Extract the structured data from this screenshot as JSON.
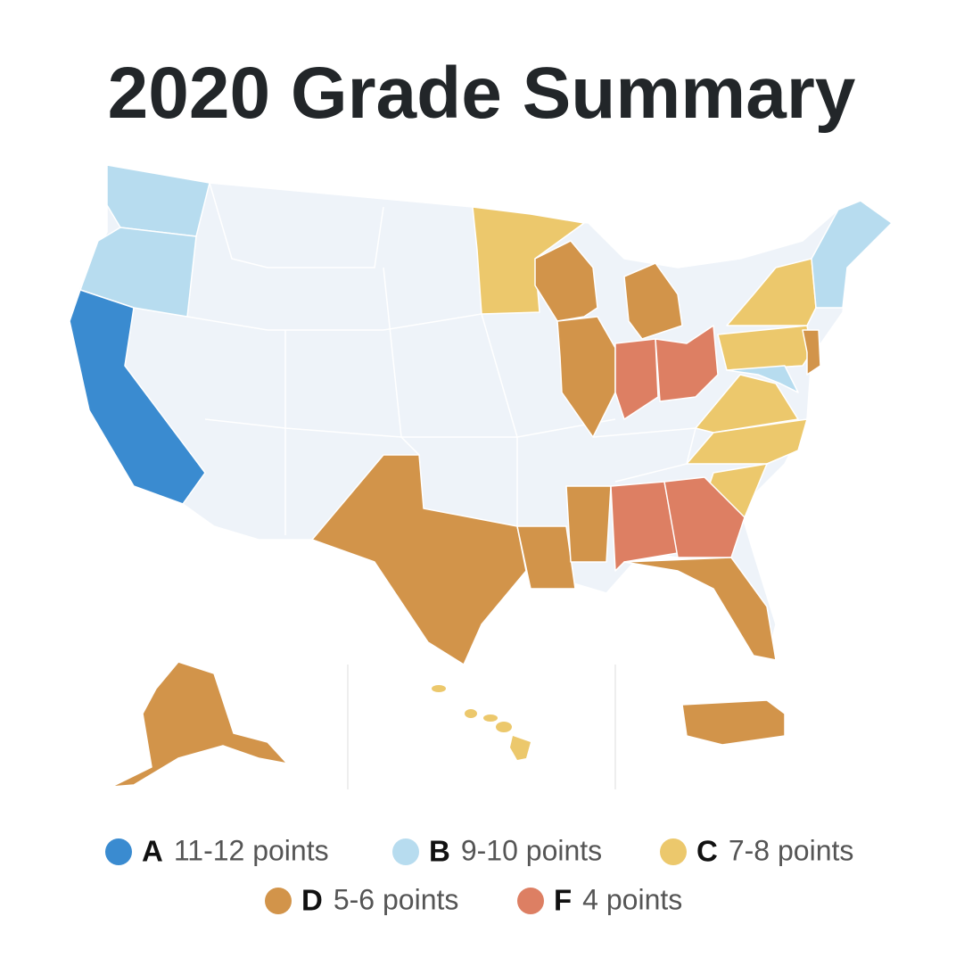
{
  "title": "2020 Grade Summary",
  "legend": [
    {
      "grade": "A",
      "label": "11-12 points",
      "color": "#3a8bd0"
    },
    {
      "grade": "B",
      "label": "9-10 points",
      "color": "#b7dcef"
    },
    {
      "grade": "C",
      "label": "7-8 points",
      "color": "#ecc86c"
    },
    {
      "grade": "D",
      "label": "5-6 points",
      "color": "#d2944a"
    },
    {
      "grade": "F",
      "label": "4 points",
      "color": "#dd7f63"
    }
  ]
}
